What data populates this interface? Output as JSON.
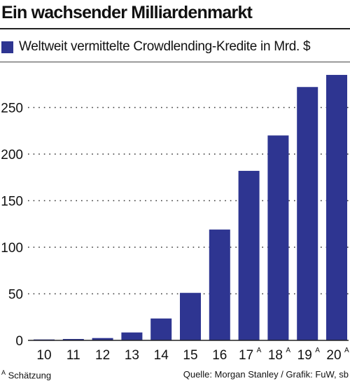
{
  "header": {
    "title": "Ein wachsender Milliardenmarkt"
  },
  "footer": {
    "note_marker": "A",
    "note_text": "Schätzung",
    "source": "Quelle: Morgan Stanley / Grafik: FuW, sb"
  },
  "colors": {
    "bar": "#2e3591",
    "grid": "#333333"
  },
  "chart_data": {
    "type": "bar",
    "legend": "Weltweit vermittelte Crowdlending-Kredite in Mrd. $",
    "legend_position": "top-left",
    "categories": [
      "10",
      "11",
      "12",
      "13",
      "14",
      "15",
      "16",
      "17",
      "18",
      "19",
      "20"
    ],
    "category_markers": [
      "",
      "",
      "",
      "",
      "",
      "",
      "",
      "A",
      "A",
      "A",
      "A"
    ],
    "values": [
      1,
      1.5,
      2.5,
      8.5,
      23.5,
      51,
      119,
      182,
      220,
      272,
      285
    ],
    "yticks": [
      0,
      50,
      100,
      150,
      200,
      250
    ],
    "ylim": [
      0,
      285
    ],
    "grid": "dotted horizontal"
  }
}
